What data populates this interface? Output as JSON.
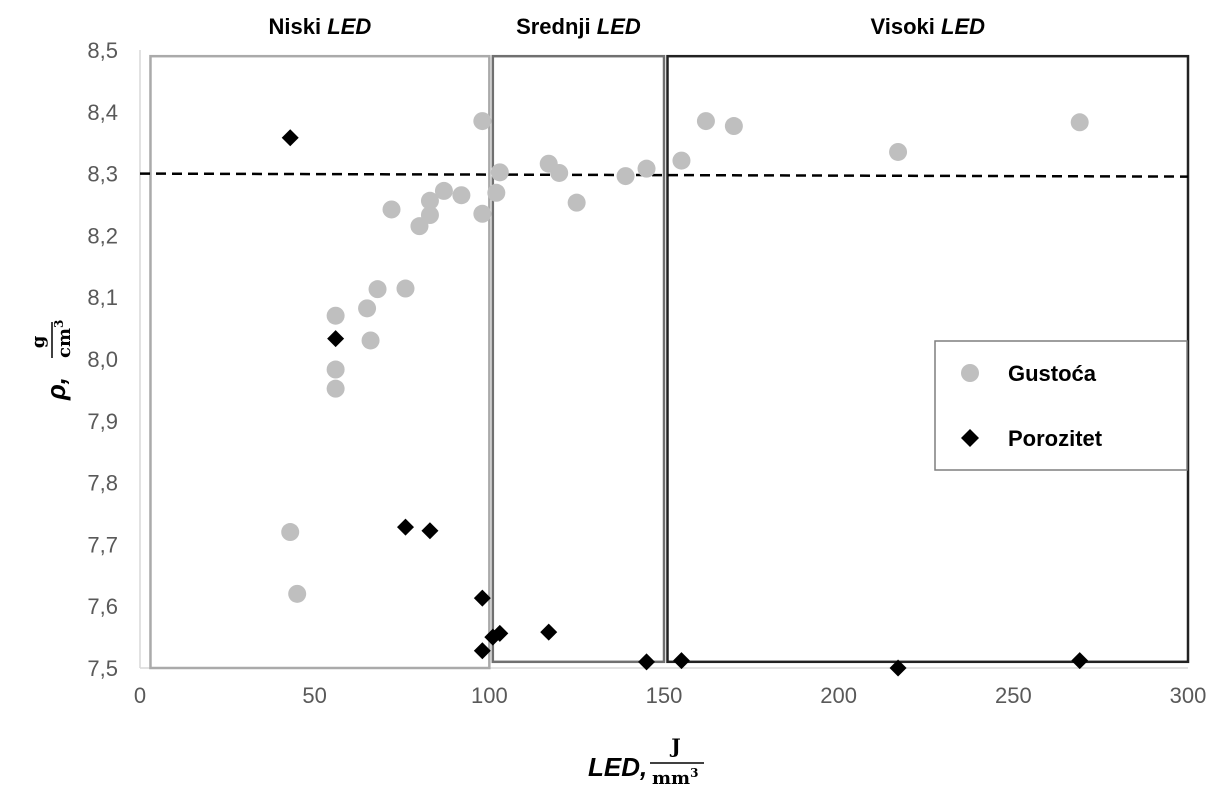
{
  "chart_data": {
    "type": "scatter",
    "xlim": [
      0,
      300
    ],
    "ylim": [
      7.5,
      8.5
    ],
    "x_ticks": [
      "0",
      "50",
      "100",
      "150",
      "200",
      "250",
      "300"
    ],
    "y_ticks": [
      "7,5",
      "7,6",
      "7,7",
      "7,8",
      "7,9",
      "8,0",
      "8,1",
      "8,2",
      "8,3",
      "8,4",
      "8,5"
    ],
    "xlabel": {
      "prefix": "LED,",
      "numerator": "J",
      "denominator": "mm",
      "exponent": "3"
    },
    "ylabel": {
      "prefix": "ρ,",
      "numerator": "g",
      "denominator": "cm",
      "exponent": "3"
    },
    "reference_line": {
      "y": 8.3,
      "style": "dashed"
    },
    "regions": [
      {
        "title": "Niski",
        "title_em": "LED",
        "x_range": [
          3,
          100
        ],
        "y_range": [
          7.5,
          8.49
        ],
        "color": "#aaaaaa"
      },
      {
        "title": "Srednji",
        "title_em": "LED",
        "x_range": [
          101,
          150
        ],
        "y_range": [
          7.51,
          8.49
        ],
        "color": "#707070"
      },
      {
        "title": "Visoki",
        "title_em": "LED",
        "x_range": [
          151,
          300
        ],
        "y_range": [
          7.51,
          8.49
        ],
        "color": "#222222"
      }
    ],
    "legend": {
      "placement": "right-center"
    },
    "series": [
      {
        "name": "Gustoća",
        "marker": "circle",
        "color": "#bfbfbf",
        "points": [
          [
            43,
            7.72
          ],
          [
            45,
            7.62
          ],
          [
            56,
            8.07
          ],
          [
            56,
            7.983
          ],
          [
            56,
            7.952
          ],
          [
            65,
            8.082
          ],
          [
            66,
            8.03
          ],
          [
            68,
            8.113
          ],
          [
            72,
            8.242
          ],
          [
            76,
            8.114
          ],
          [
            80,
            8.215
          ],
          [
            83,
            8.256
          ],
          [
            83,
            8.233
          ],
          [
            87,
            8.272
          ],
          [
            92,
            8.265
          ],
          [
            98,
            8.385
          ],
          [
            98,
            8.235
          ],
          [
            102,
            8.269
          ],
          [
            103,
            8.302
          ],
          [
            117,
            8.316
          ],
          [
            120,
            8.301
          ],
          [
            125,
            8.253
          ],
          [
            139,
            8.296
          ],
          [
            145,
            8.308
          ],
          [
            155,
            8.321
          ],
          [
            162,
            8.385
          ],
          [
            170,
            8.377
          ],
          [
            217,
            8.335
          ],
          [
            269,
            8.383
          ]
        ]
      },
      {
        "name": "Porozitet",
        "marker": "diamond",
        "color": "#000000",
        "points": [
          [
            43,
            8.358
          ],
          [
            56,
            8.033
          ],
          [
            76,
            7.728
          ],
          [
            83,
            7.722
          ],
          [
            98,
            7.613
          ],
          [
            98,
            7.528
          ],
          [
            101,
            7.55
          ],
          [
            103,
            7.556
          ],
          [
            117,
            7.558
          ],
          [
            145,
            7.51
          ],
          [
            155,
            7.512
          ],
          [
            217,
            7.5
          ],
          [
            269,
            7.512
          ]
        ]
      }
    ]
  }
}
